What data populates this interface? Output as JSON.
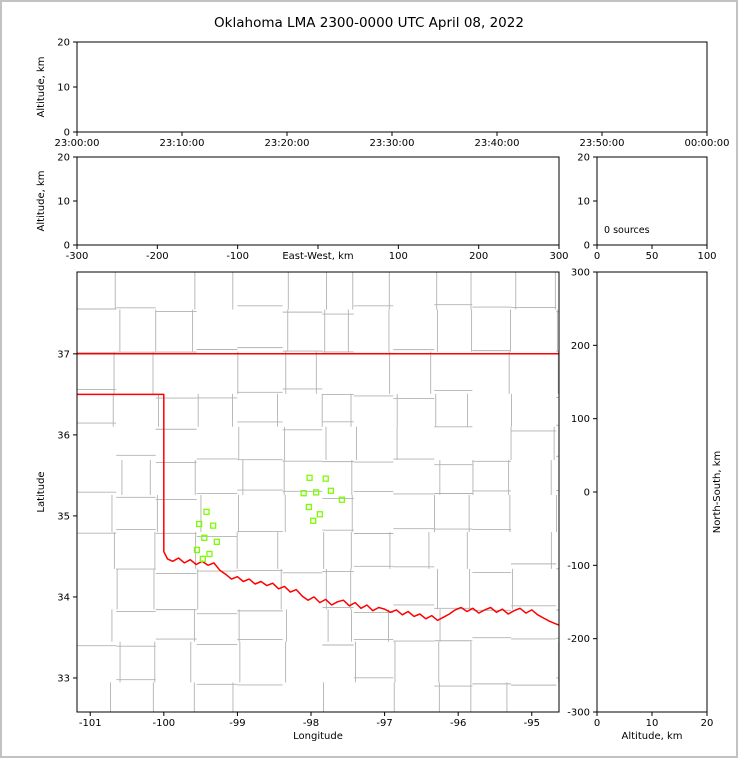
{
  "title": "Oklahoma LMA 2300-0000 UTC April 08, 2022",
  "colors": {
    "state_border": "#ff0000",
    "county_lines": "#b2b2b2",
    "station": "#7cfc00",
    "axis": "#000000"
  },
  "chart_data": [
    {
      "id": "time-height",
      "type": "scatter",
      "xlabel": "",
      "ylabel": "Altitude, km",
      "xlim": [
        0,
        6
      ],
      "xticks": [
        0,
        1,
        2,
        3,
        4,
        5,
        6
      ],
      "xtick_labels": [
        "23:00:00",
        "23:10:00",
        "23:20:00",
        "23:30:00",
        "23:40:00",
        "23:50:00",
        "00:00:00"
      ],
      "ylim": [
        0,
        20
      ],
      "yticks": [
        0,
        10,
        20
      ],
      "points": []
    },
    {
      "id": "ew-height",
      "type": "scatter",
      "xlabel": "East-West, km",
      "ylabel": "Altitude, km",
      "xlim": [
        -300,
        300
      ],
      "xticks": [
        -300,
        -200,
        -100,
        0,
        100,
        200,
        300
      ],
      "xtick_labels": [
        "-300",
        "-200",
        "-100",
        "",
        "100",
        "200",
        "300"
      ],
      "ylim": [
        0,
        20
      ],
      "yticks": [
        0,
        10,
        20
      ],
      "points": []
    },
    {
      "id": "alt-histogram",
      "type": "line",
      "annotation": "0 sources",
      "xlim": [
        0,
        100
      ],
      "xticks": [
        0,
        50,
        100
      ],
      "xtick_labels": [
        "0",
        "50",
        "100"
      ],
      "ylim": [
        0,
        20
      ],
      "yticks": [
        0,
        10,
        20
      ],
      "points": []
    },
    {
      "id": "map",
      "type": "scatter",
      "xlabel": "Longitude",
      "ylabel": "Latitude",
      "xlim": [
        -101.18,
        -94.63
      ],
      "xticks": [
        -101,
        -100,
        -99,
        -98,
        -97,
        -96,
        -95
      ],
      "ylim": [
        32.58,
        38.01
      ],
      "yticks": [
        33,
        34,
        35,
        36,
        37
      ],
      "stations": [
        [
          -98.02,
          35.47
        ],
        [
          -97.8,
          35.46
        ],
        [
          -98.1,
          35.28
        ],
        [
          -97.93,
          35.29
        ],
        [
          -97.73,
          35.31
        ],
        [
          -97.58,
          35.2
        ],
        [
          -98.03,
          35.11
        ],
        [
          -97.88,
          35.02
        ],
        [
          -97.97,
          34.94
        ],
        [
          -99.42,
          35.05
        ],
        [
          -99.52,
          34.9
        ],
        [
          -99.33,
          34.88
        ],
        [
          -99.45,
          34.73
        ],
        [
          -99.28,
          34.68
        ],
        [
          -99.55,
          34.58
        ],
        [
          -99.38,
          34.53
        ],
        [
          -99.47,
          34.47
        ]
      ],
      "state_border": [
        [
          [
            -101.18,
            37.0
          ],
          [
            -94.62,
            37.0
          ]
        ],
        [
          [
            -101.18,
            36.5
          ],
          [
            -100.0,
            36.5
          ],
          [
            -100.0,
            34.56
          ],
          [
            -99.95,
            34.47
          ],
          [
            -99.88,
            34.44
          ],
          [
            -99.8,
            34.48
          ],
          [
            -99.72,
            34.42
          ],
          [
            -99.64,
            34.46
          ],
          [
            -99.56,
            34.4
          ],
          [
            -99.48,
            34.44
          ],
          [
            -99.4,
            34.39
          ],
          [
            -99.32,
            34.42
          ],
          [
            -99.24,
            34.33
          ],
          [
            -99.16,
            34.28
          ],
          [
            -99.08,
            34.22
          ],
          [
            -99.0,
            34.25
          ],
          [
            -98.92,
            34.19
          ],
          [
            -98.84,
            34.22
          ],
          [
            -98.76,
            34.16
          ],
          [
            -98.68,
            34.19
          ],
          [
            -98.6,
            34.14
          ],
          [
            -98.52,
            34.17
          ],
          [
            -98.44,
            34.1
          ],
          [
            -98.36,
            34.13
          ],
          [
            -98.28,
            34.06
          ],
          [
            -98.2,
            34.09
          ],
          [
            -98.12,
            34.01
          ],
          [
            -98.04,
            33.96
          ],
          [
            -97.96,
            34.0
          ],
          [
            -97.88,
            33.93
          ],
          [
            -97.8,
            33.97
          ],
          [
            -97.72,
            33.9
          ],
          [
            -97.64,
            33.94
          ],
          [
            -97.56,
            33.96
          ],
          [
            -97.48,
            33.89
          ],
          [
            -97.4,
            33.93
          ],
          [
            -97.32,
            33.86
          ],
          [
            -97.24,
            33.9
          ],
          [
            -97.16,
            33.83
          ],
          [
            -97.08,
            33.87
          ],
          [
            -97.0,
            33.85
          ],
          [
            -96.92,
            33.81
          ],
          [
            -96.84,
            33.84
          ],
          [
            -96.76,
            33.78
          ],
          [
            -96.68,
            33.82
          ],
          [
            -96.6,
            33.76
          ],
          [
            -96.52,
            33.79
          ],
          [
            -96.44,
            33.73
          ],
          [
            -96.36,
            33.77
          ],
          [
            -96.28,
            33.71
          ],
          [
            -96.2,
            33.75
          ],
          [
            -96.12,
            33.79
          ],
          [
            -96.04,
            33.84
          ],
          [
            -95.96,
            33.87
          ],
          [
            -95.88,
            33.82
          ],
          [
            -95.8,
            33.86
          ],
          [
            -95.72,
            33.8
          ],
          [
            -95.64,
            33.84
          ],
          [
            -95.56,
            33.87
          ],
          [
            -95.48,
            33.81
          ],
          [
            -95.4,
            33.85
          ],
          [
            -95.32,
            33.79
          ],
          [
            -95.24,
            33.83
          ],
          [
            -95.16,
            33.86
          ],
          [
            -95.08,
            33.8
          ],
          [
            -95.0,
            33.84
          ],
          [
            -94.92,
            33.78
          ],
          [
            -94.84,
            33.74
          ],
          [
            -94.76,
            33.7
          ],
          [
            -94.68,
            33.67
          ],
          [
            -94.62,
            33.65
          ]
        ]
      ]
    },
    {
      "id": "ns-height",
      "type": "scatter",
      "xlabel": "Altitude, km",
      "ylabel": "North-South, km",
      "xlim": [
        0,
        20
      ],
      "xticks": [
        0,
        10,
        20
      ],
      "xtick_labels": [
        "0",
        "10",
        "20"
      ],
      "ylim": [
        -300,
        300
      ],
      "yticks": [
        -300,
        -200,
        -100,
        0,
        100,
        200,
        300
      ],
      "points": []
    }
  ]
}
